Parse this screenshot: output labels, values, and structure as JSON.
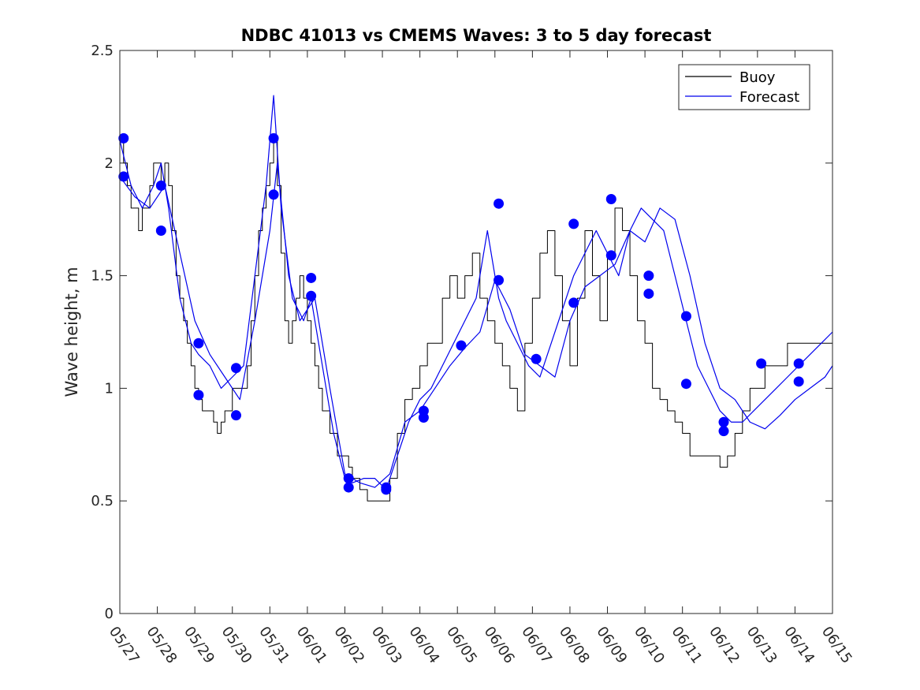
{
  "chart_data": {
    "type": "line",
    "title": "NDBC 41013 vs CMEMS Waves: 3 to 5 day forecast",
    "xlabel": "",
    "ylabel": "Wave height, m",
    "xlim": [
      "05/27",
      "06/15"
    ],
    "ylim": [
      0,
      2.5
    ],
    "yticks": [
      "0",
      "0.5",
      "1",
      "1.5",
      "2",
      "2.5"
    ],
    "xticks": [
      "05/27",
      "05/28",
      "05/29",
      "05/30",
      "05/31",
      "06/01",
      "06/02",
      "06/03",
      "06/04",
      "06/05",
      "06/06",
      "06/07",
      "06/08",
      "06/09",
      "06/10",
      "06/11",
      "06/12",
      "06/13",
      "06/14",
      "06/15"
    ],
    "grid": false,
    "legend": {
      "position": "top-right",
      "entries": [
        "Buoy",
        "Forecast"
      ]
    },
    "colors": {
      "buoy": "#000000",
      "forecast": "#0000ee",
      "markers": "#0000ff"
    },
    "units": "days since 05/27 (x), meters (y)",
    "series": [
      {
        "name": "Buoy",
        "color": "#000000",
        "x": [
          0,
          0.1,
          0.2,
          0.3,
          0.4,
          0.5,
          0.6,
          0.7,
          0.8,
          0.9,
          1.0,
          1.1,
          1.2,
          1.3,
          1.4,
          1.5,
          1.6,
          1.7,
          1.8,
          1.9,
          2.0,
          2.1,
          2.2,
          2.3,
          2.4,
          2.5,
          2.6,
          2.7,
          2.8,
          2.9,
          3.0,
          3.1,
          3.2,
          3.3,
          3.4,
          3.5,
          3.6,
          3.7,
          3.8,
          3.9,
          4.0,
          4.1,
          4.2,
          4.3,
          4.4,
          4.5,
          4.6,
          4.7,
          4.8,
          4.9,
          5.0,
          5.1,
          5.2,
          5.3,
          5.4,
          5.5,
          5.6,
          5.7,
          5.8,
          5.9,
          6.0,
          6.1,
          6.2,
          6.3,
          6.4,
          6.5,
          6.6,
          6.7,
          6.8,
          6.9,
          7.0,
          7.2,
          7.4,
          7.6,
          7.8,
          8.0,
          8.2,
          8.4,
          8.6,
          8.8,
          9.0,
          9.2,
          9.4,
          9.6,
          9.8,
          10.0,
          10.2,
          10.4,
          10.6,
          10.8,
          11.0,
          11.2,
          11.4,
          11.6,
          11.8,
          12.0,
          12.2,
          12.4,
          12.6,
          12.8,
          13.0,
          13.2,
          13.4,
          13.6,
          13.8,
          14.0,
          14.2,
          14.4,
          14.6,
          14.8,
          15.0,
          15.2,
          15.4,
          15.6,
          15.8,
          16.0,
          16.2,
          16.4,
          16.6,
          16.8,
          17.0,
          17.2,
          17.4,
          17.6,
          17.8,
          18.0,
          18.2,
          18.4,
          18.6,
          18.8,
          19.0
        ],
        "y": [
          2.1,
          2.0,
          1.9,
          1.8,
          1.8,
          1.7,
          1.8,
          1.8,
          1.9,
          2.0,
          2.0,
          1.9,
          2.0,
          1.9,
          1.7,
          1.5,
          1.4,
          1.3,
          1.2,
          1.1,
          1.0,
          0.95,
          0.9,
          0.9,
          0.9,
          0.85,
          0.8,
          0.85,
          0.9,
          0.9,
          1.0,
          1.0,
          1.0,
          1.0,
          1.1,
          1.3,
          1.5,
          1.7,
          1.8,
          1.9,
          2.0,
          2.1,
          1.9,
          1.6,
          1.3,
          1.2,
          1.3,
          1.4,
          1.5,
          1.4,
          1.3,
          1.2,
          1.1,
          1.0,
          0.9,
          0.9,
          0.8,
          0.8,
          0.7,
          0.7,
          0.7,
          0.65,
          0.6,
          0.6,
          0.55,
          0.55,
          0.5,
          0.5,
          0.5,
          0.5,
          0.5,
          0.6,
          0.8,
          0.95,
          1.0,
          1.1,
          1.2,
          1.2,
          1.4,
          1.5,
          1.4,
          1.5,
          1.6,
          1.4,
          1.3,
          1.2,
          1.1,
          1.0,
          0.9,
          1.2,
          1.4,
          1.6,
          1.7,
          1.5,
          1.3,
          1.1,
          1.4,
          1.7,
          1.5,
          1.3,
          1.6,
          1.8,
          1.7,
          1.5,
          1.3,
          1.2,
          1.0,
          0.95,
          0.9,
          0.85,
          0.8,
          0.7,
          0.7,
          0.7,
          0.7,
          0.65,
          0.7,
          0.8,
          0.9,
          1.0,
          1.0,
          1.1,
          1.1,
          1.1,
          1.2,
          1.2,
          1.2,
          1.2,
          1.2,
          1.2,
          1.2
        ]
      },
      {
        "name": "Forecast",
        "color": "#0000ee",
        "x": [
          0,
          0.3,
          0.6,
          0.9,
          1.1,
          1.3,
          1.6,
          1.9,
          2.1,
          2.4,
          2.7,
          3.0,
          3.3,
          3.6,
          3.9,
          4.1,
          4.3,
          4.6,
          4.9,
          5.1,
          5.4,
          5.7,
          6.0,
          6.2,
          6.5,
          6.8,
          7.1,
          7.4,
          7.7,
          8.0,
          8.3,
          8.6,
          8.9,
          9.2,
          9.5,
          9.8,
          10.1,
          10.3,
          10.6,
          10.9,
          11.2,
          11.5,
          11.8,
          12.1,
          12.4,
          12.7,
          13.0,
          13.3,
          13.6,
          13.9,
          14.2,
          14.5,
          14.8,
          15.1,
          15.4,
          15.7,
          16.0,
          16.3,
          16.6,
          16.9,
          17.2,
          17.5,
          17.8,
          18.1,
          18.4,
          18.7,
          19.0
        ],
        "y": [
          2.1,
          1.9,
          1.8,
          1.9,
          2.0,
          1.8,
          1.4,
          1.2,
          1.15,
          1.1,
          1.0,
          1.05,
          1.1,
          1.5,
          1.9,
          2.3,
          1.8,
          1.4,
          1.3,
          1.4,
          1.1,
          0.8,
          0.6,
          0.58,
          0.6,
          0.6,
          0.55,
          0.7,
          0.85,
          0.95,
          1.0,
          1.1,
          1.2,
          1.3,
          1.4,
          1.7,
          1.4,
          1.3,
          1.2,
          1.1,
          1.05,
          1.2,
          1.35,
          1.5,
          1.6,
          1.7,
          1.6,
          1.5,
          1.7,
          1.8,
          1.75,
          1.7,
          1.5,
          1.3,
          1.1,
          1.0,
          0.9,
          0.85,
          0.85,
          0.9,
          0.95,
          1.0,
          1.05,
          1.1,
          1.15,
          1.2,
          1.25
        ]
      },
      {
        "name": "",
        "color": "#0000ee",
        "x": [
          0,
          0.4,
          0.8,
          1.2,
          1.6,
          2.0,
          2.4,
          2.8,
          3.2,
          3.6,
          4.0,
          4.2,
          4.5,
          4.8,
          5.2,
          5.6,
          6.0,
          6.4,
          6.8,
          7.2,
          7.6,
          8.0,
          8.4,
          8.8,
          9.2,
          9.6,
          10.0,
          10.4,
          10.8,
          11.2,
          11.6,
          12.0,
          12.4,
          12.8,
          13.2,
          13.6,
          14.0,
          14.4,
          14.8,
          15.2,
          15.6,
          16.0,
          16.4,
          16.8,
          17.2,
          17.6,
          18.0,
          18.4,
          18.8,
          19.0
        ],
        "y": [
          1.94,
          1.85,
          1.8,
          1.9,
          1.6,
          1.3,
          1.15,
          1.05,
          0.95,
          1.3,
          1.7,
          2.0,
          1.5,
          1.3,
          1.4,
          1.0,
          0.62,
          0.58,
          0.56,
          0.62,
          0.85,
          0.9,
          1.0,
          1.1,
          1.18,
          1.25,
          1.48,
          1.35,
          1.15,
          1.1,
          1.05,
          1.3,
          1.45,
          1.5,
          1.55,
          1.7,
          1.65,
          1.8,
          1.75,
          1.5,
          1.2,
          1.0,
          0.95,
          0.85,
          0.82,
          0.88,
          0.95,
          1.0,
          1.05,
          1.1
        ]
      }
    ],
    "markers": {
      "color": "#0000ff",
      "x": [
        0.1,
        0.1,
        1.1,
        1.1,
        2.1,
        2.1,
        3.1,
        3.1,
        4.1,
        4.1,
        5.1,
        5.1,
        6.1,
        6.1,
        7.1,
        7.1,
        8.1,
        8.1,
        9.1,
        10.1,
        10.1,
        11.1,
        12.1,
        12.1,
        13.1,
        13.1,
        14.1,
        14.1,
        15.1,
        15.1,
        16.1,
        16.1,
        17.1,
        18.1,
        18.1
      ],
      "y": [
        2.11,
        1.94,
        1.9,
        1.7,
        1.2,
        0.97,
        1.09,
        0.88,
        2.11,
        1.86,
        1.49,
        1.41,
        0.6,
        0.56,
        0.56,
        0.55,
        0.9,
        0.87,
        1.19,
        1.82,
        1.48,
        1.13,
        1.38,
        1.73,
        1.59,
        1.84,
        1.5,
        1.42,
        1.32,
        1.02,
        0.85,
        0.81,
        1.11,
        1.03,
        1.11
      ]
    }
  }
}
